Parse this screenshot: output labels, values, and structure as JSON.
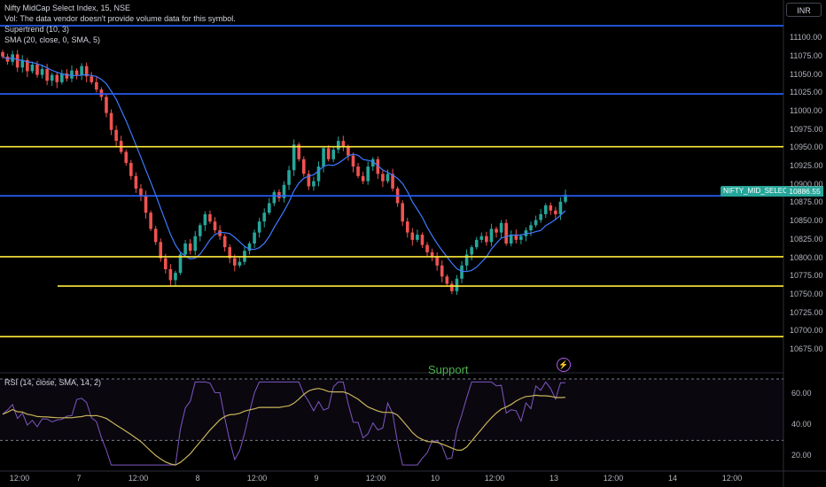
{
  "header": {
    "title": "Nifty MidCap Select Index, 15, NSE",
    "vol_note": "Vol: The data vendor doesn't provide volume data for this symbol.",
    "supertrend": "Supertrend (10, 3)",
    "sma": "SMA (20, close, 0, SMA, 5)",
    "rsi": "RSI (14, close, SMA, 14, 2)",
    "currency": "INR"
  },
  "annotations": {
    "support": "Support",
    "price_tag": "NIFTY_MID_SELECT",
    "price_value": "10886.55"
  },
  "colors": {
    "up": "#26a69a",
    "down": "#ef5350",
    "sma": "#3d7bff",
    "blue_level": "#2962ff",
    "yellow_level": "#ffeb3b",
    "rsi_line": "#7e57c2",
    "rsi_ma": "#c9b458"
  },
  "chart_data": {
    "type": "candlestick",
    "symbol": "Nifty MidCap Select Index",
    "interval": "15",
    "y_ticks": [
      11100,
      11075,
      11050,
      11025,
      11000,
      10975,
      10950,
      10925,
      10900,
      10875,
      10850,
      10825,
      10800,
      10775,
      10750,
      10725,
      10700,
      10675
    ],
    "y_tick_labels": [
      "11100.00",
      "11075.00",
      "11050.00",
      "11025.00",
      "11000.00",
      "10975.00",
      "10950.00",
      "10925.00",
      "10900.00",
      "10875.00",
      "10850.00",
      "10825.00",
      "10800.00",
      "10775.00",
      "10750.00",
      "10725.00",
      "10700.00",
      "10675.00"
    ],
    "ylim": [
      10663,
      11128
    ],
    "x_tick_labels": [
      "12:00",
      "7",
      "12:00",
      "8",
      "12:00",
      "9",
      "12:00",
      "10",
      "12:00",
      "13",
      "12:00",
      "14",
      "12:00"
    ],
    "horizontal_levels": [
      {
        "price": 11117,
        "color": "blue"
      },
      {
        "price": 11024,
        "color": "blue"
      },
      {
        "price": 10952,
        "color": "yellow"
      },
      {
        "price": 10885,
        "color": "blue"
      },
      {
        "price": 10802,
        "color": "yellow"
      },
      {
        "price": 10762,
        "color": "yellow"
      },
      {
        "price": 10693,
        "color": "yellow"
      }
    ],
    "closes": [
      11075,
      11068,
      11078,
      11060,
      11070,
      11055,
      11064,
      11050,
      11058,
      11042,
      11050,
      11040,
      11052,
      11045,
      11056,
      11050,
      11062,
      11048,
      11040,
      11030,
      11020,
      10998,
      10975,
      10960,
      10945,
      10930,
      10912,
      10895,
      10885,
      10862,
      10840,
      10822,
      10800,
      10785,
      10770,
      10780,
      10805,
      10820,
      10810,
      10830,
      10845,
      10860,
      10850,
      10838,
      10830,
      10815,
      10800,
      10790,
      10795,
      10810,
      10820,
      10835,
      10850,
      10862,
      10875,
      10890,
      10882,
      10900,
      10920,
      10955,
      10935,
      10915,
      10898,
      10905,
      10925,
      10950,
      10935,
      10948,
      10960,
      10952,
      10940,
      10925,
      10912,
      10905,
      10925,
      10935,
      10915,
      10905,
      10915,
      10895,
      10875,
      10850,
      10835,
      10825,
      10832,
      10818,
      10808,
      10802,
      10790,
      10775,
      10765,
      10755,
      10772,
      10790,
      10805,
      10815,
      10825,
      10830,
      10822,
      10840,
      10835,
      10848,
      10820,
      10832,
      10825,
      10830,
      10838,
      10845,
      10852,
      10860,
      10872,
      10865,
      10860,
      10877,
      10886.55
    ],
    "current_price": 10886.55,
    "rsi": {
      "y_ticks": [
        60,
        40,
        20
      ],
      "y_tick_labels": [
        "60.00",
        "40.00",
        "20.00"
      ],
      "bands": [
        70,
        30
      ],
      "ylim": [
        10,
        74
      ]
    }
  }
}
